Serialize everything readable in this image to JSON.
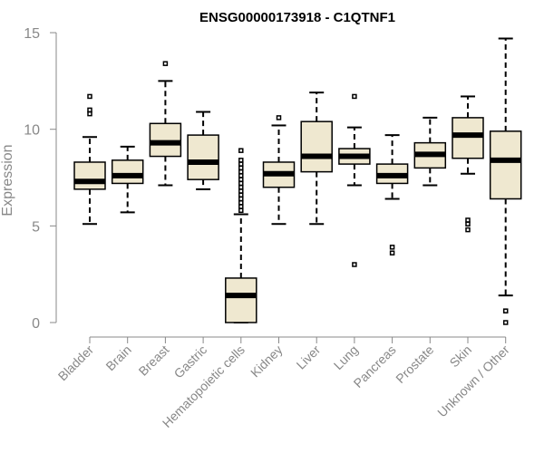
{
  "chart_data": {
    "type": "boxplot",
    "title": "ENSG00000173918 - C1QTNF1",
    "xlabel": "",
    "ylabel": "Expression",
    "ylim": [
      0,
      15
    ],
    "yticks": [
      0,
      5,
      10,
      15
    ],
    "grid": false,
    "colors": {
      "box_fill": "#efe8d0",
      "box_stroke": "#000000",
      "axis": "#888888",
      "title": "#000000"
    },
    "categories": [
      "Bladder",
      "Brain",
      "Breast",
      "Gastric",
      "Hematopoietic cells",
      "Kidney",
      "Liver",
      "Lung",
      "Pancreas",
      "Prostate",
      "Skin",
      "Unknown / Other"
    ],
    "boxes": [
      {
        "name": "Bladder",
        "whisker_low": 5.1,
        "q1": 6.9,
        "median": 7.3,
        "q3": 8.3,
        "whisker_high": 9.6,
        "outliers": [
          11.7,
          11.0,
          10.8
        ]
      },
      {
        "name": "Brain",
        "whisker_low": 5.7,
        "q1": 7.2,
        "median": 7.6,
        "q3": 8.4,
        "whisker_high": 9.1,
        "outliers": []
      },
      {
        "name": "Breast",
        "whisker_low": 7.1,
        "q1": 8.6,
        "median": 9.3,
        "q3": 10.3,
        "whisker_high": 12.5,
        "outliers": [
          13.4
        ]
      },
      {
        "name": "Gastric",
        "whisker_low": 6.9,
        "q1": 7.4,
        "median": 8.3,
        "q3": 9.7,
        "whisker_high": 10.9,
        "outliers": []
      },
      {
        "name": "Hematopoietic cells",
        "whisker_low": 0.0,
        "q1": 0.0,
        "median": 1.4,
        "q3": 2.3,
        "whisker_high": 5.6,
        "outliers": [
          5.8,
          6.0,
          6.2,
          6.4,
          6.6,
          6.8,
          7.0,
          7.2,
          7.4,
          7.6,
          7.8,
          8.0,
          8.2,
          8.4,
          8.9
        ]
      },
      {
        "name": "Kidney",
        "whisker_low": 5.1,
        "q1": 7.0,
        "median": 7.7,
        "q3": 8.3,
        "whisker_high": 10.2,
        "outliers": [
          10.6
        ]
      },
      {
        "name": "Liver",
        "whisker_low": 5.1,
        "q1": 7.8,
        "median": 8.6,
        "q3": 10.4,
        "whisker_high": 11.9,
        "outliers": []
      },
      {
        "name": "Lung",
        "whisker_low": 7.1,
        "q1": 8.2,
        "median": 8.6,
        "q3": 9.0,
        "whisker_high": 10.1,
        "outliers": [
          11.7,
          3.0
        ]
      },
      {
        "name": "Pancreas",
        "whisker_low": 6.4,
        "q1": 7.2,
        "median": 7.6,
        "q3": 8.2,
        "whisker_high": 9.7,
        "outliers": [
          3.9,
          3.6
        ]
      },
      {
        "name": "Prostate",
        "whisker_low": 7.1,
        "q1": 8.0,
        "median": 8.7,
        "q3": 9.3,
        "whisker_high": 10.6,
        "outliers": []
      },
      {
        "name": "Skin",
        "whisker_low": 7.7,
        "q1": 8.5,
        "median": 9.7,
        "q3": 10.6,
        "whisker_high": 11.7,
        "outliers": [
          5.3,
          5.1,
          4.8
        ]
      },
      {
        "name": "Unknown / Other",
        "whisker_low": 1.4,
        "q1": 6.4,
        "median": 8.4,
        "q3": 9.9,
        "whisker_high": 14.7,
        "outliers": [
          0.6,
          0.6,
          0.0
        ]
      }
    ]
  }
}
